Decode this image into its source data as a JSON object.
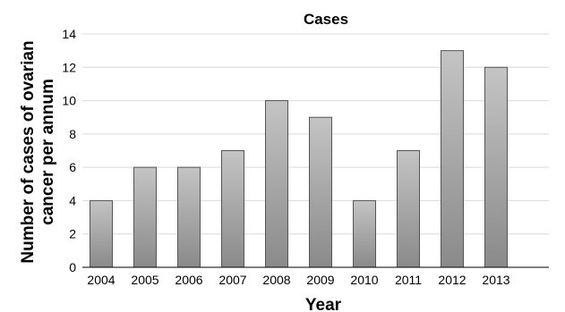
{
  "chart_data": {
    "type": "bar",
    "title": "Cases",
    "xlabel": "Year",
    "ylabel_lines": [
      "Number of cases of ovarian",
      "cancer per annum"
    ],
    "categories": [
      "2004",
      "2005",
      "2006",
      "2007",
      "2008",
      "2009",
      "2010",
      "2011",
      "2012",
      "2013"
    ],
    "values": [
      4,
      6,
      6,
      7,
      10,
      9,
      4,
      7,
      13,
      12
    ],
    "ylim": [
      0,
      14
    ],
    "yticks": [
      0,
      2,
      4,
      6,
      8,
      10,
      12,
      14
    ],
    "grid": true,
    "legend": false,
    "colors": {
      "bar_light": "#c4c4c4",
      "bar_dark": "#8a8a8a",
      "bar_stroke": "#555555",
      "grid": "#d9d9d9"
    }
  }
}
